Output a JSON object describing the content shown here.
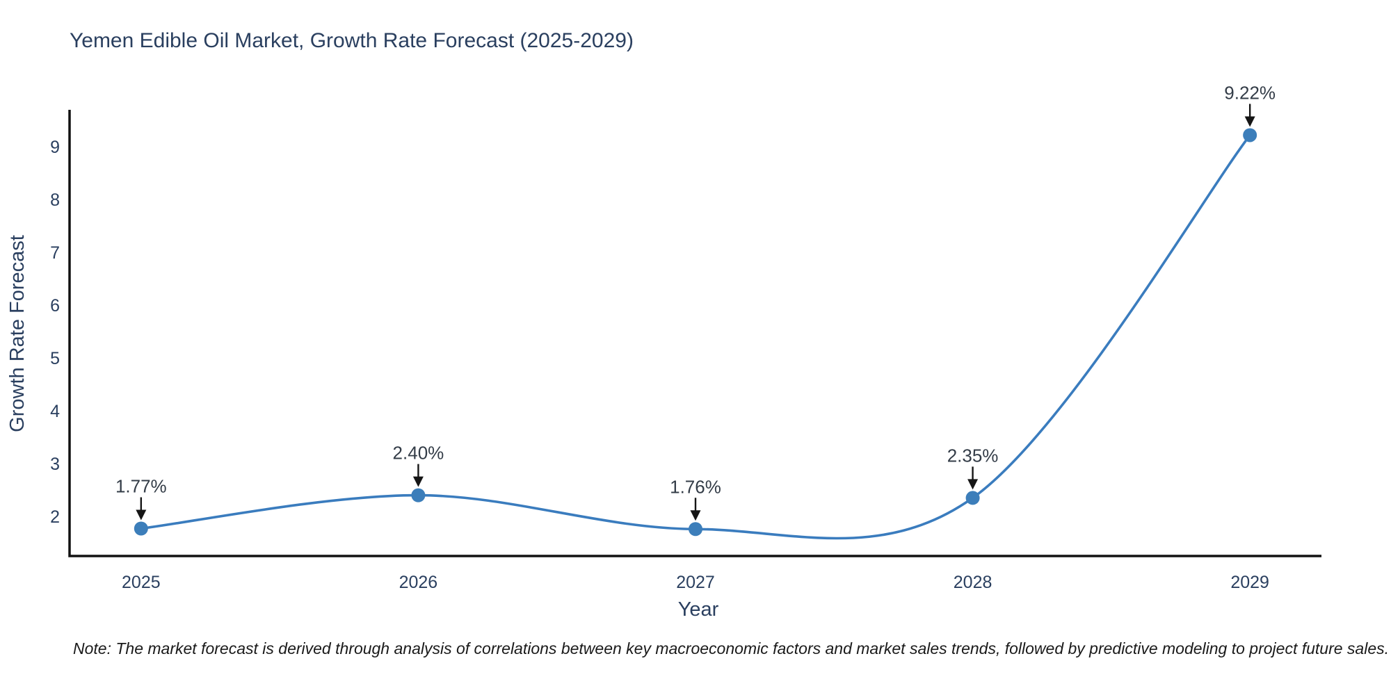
{
  "note": "Note: The market forecast is derived through analysis of correlations between key macroeconomic factors and market sales trends, followed by predictive modeling to project future sales.",
  "chart_data": {
    "type": "line",
    "title": "Yemen Edible Oil Market, Growth Rate Forecast (2025-2029)",
    "xlabel": "Year",
    "ylabel": "Growth Rate Forecast",
    "x": [
      2025,
      2026,
      2027,
      2028,
      2029
    ],
    "y": [
      1.77,
      2.4,
      1.76,
      2.35,
      9.22
    ],
    "point_labels": [
      "1.77%",
      "2.40%",
      "1.76%",
      "2.35%",
      "9.22%"
    ],
    "xtick_labels": [
      "2025",
      "2026",
      "2027",
      "2028",
      "2029"
    ],
    "ytick_values": [
      2,
      3,
      4,
      5,
      6,
      7,
      8,
      9
    ],
    "xlim": [
      2024.742,
      2029.258
    ],
    "ylim": [
      1.25,
      9.7
    ],
    "line_shape": "spline",
    "grid": false,
    "legend": false,
    "colors": {
      "line": "#3a7cbe",
      "marker": "#3c7eba",
      "axis": "#111111",
      "text": "#2a3f5f",
      "annotation": "#333c47",
      "arrow": "#151515",
      "note": "#1a1a1a"
    }
  }
}
